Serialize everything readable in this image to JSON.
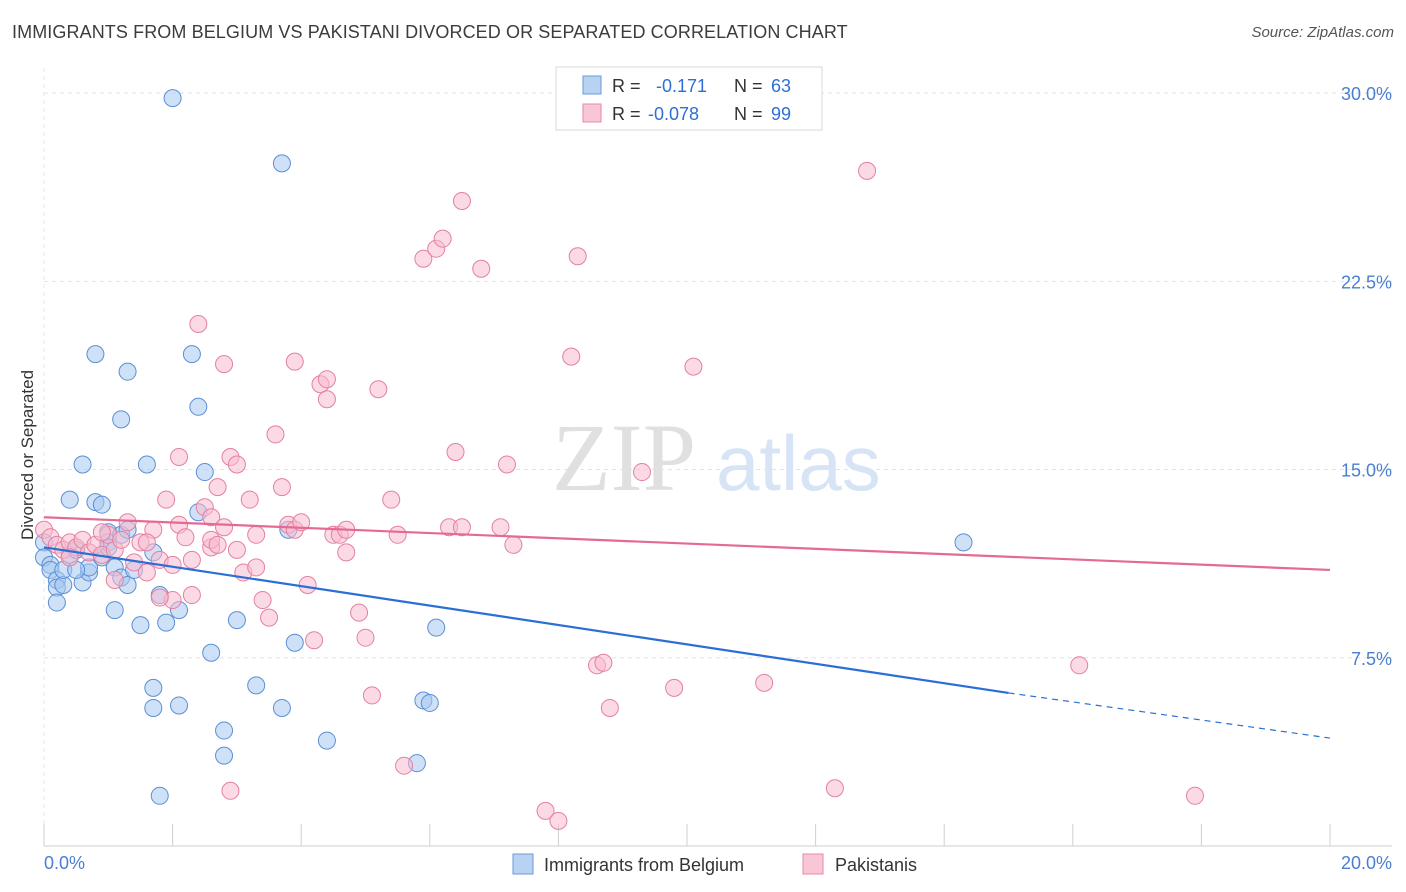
{
  "header": {
    "title": "IMMIGRANTS FROM BELGIUM VS PAKISTANI DIVORCED OR SEPARATED CORRELATION CHART",
    "source": "Source: ZipAtlas.com"
  },
  "watermark": {
    "part1": "ZIP",
    "part2": "atlas"
  },
  "legend_top": {
    "rows": [
      {
        "r_label": "R =",
        "r_value": "-0.171",
        "n_label": "N =",
        "n_value": "63"
      },
      {
        "r_label": "R =",
        "r_value": "-0.078",
        "n_label": "N =",
        "n_value": "99"
      }
    ]
  },
  "chart_data": {
    "type": "scatter",
    "title": "IMMIGRANTS FROM BELGIUM VS PAKISTANI DIVORCED OR SEPARATED CORRELATION CHART",
    "xlabel": "",
    "ylabel": "Divorced or Separated",
    "xlim": [
      0,
      20
    ],
    "ylim": [
      0,
      31
    ],
    "x_tick_labels": [
      "0.0%",
      "20.0%"
    ],
    "y_ticks": [
      7.5,
      15.0,
      22.5,
      30.0
    ],
    "y_tick_labels": [
      "7.5%",
      "15.0%",
      "22.5%",
      "30.0%"
    ],
    "grid": true,
    "legend_position": "bottom",
    "colors": {
      "belgium_fill": "#a8c8f0",
      "belgium_stroke": "#5b8fd6",
      "belgium_line": "#2a6fd6",
      "pakistani_fill": "#f8bcd0",
      "pakistani_stroke": "#e5809f",
      "pakistani_line": "#e46a94"
    },
    "series": [
      {
        "name": "Immigrants from Belgium",
        "trend": {
          "x0": 0,
          "y0": 11.9,
          "x1": 15.0,
          "y1": 6.1,
          "dash_to_x": 20,
          "dash_to_y": 4.3
        },
        "points": [
          [
            0.0,
            12.1
          ],
          [
            0.0,
            11.5
          ],
          [
            0.1,
            11.2
          ],
          [
            0.1,
            11.0
          ],
          [
            0.2,
            10.6
          ],
          [
            0.2,
            10.3
          ],
          [
            0.3,
            10.4
          ],
          [
            0.3,
            11.0
          ],
          [
            0.4,
            11.6
          ],
          [
            0.4,
            13.8
          ],
          [
            0.5,
            11.8
          ],
          [
            0.6,
            15.2
          ],
          [
            0.6,
            10.5
          ],
          [
            0.7,
            10.9
          ],
          [
            0.7,
            11.1
          ],
          [
            0.8,
            13.7
          ],
          [
            0.8,
            19.6
          ],
          [
            0.9,
            13.6
          ],
          [
            0.9,
            11.5
          ],
          [
            1.0,
            12.5
          ],
          [
            1.0,
            12.1
          ],
          [
            1.1,
            11.1
          ],
          [
            1.1,
            9.4
          ],
          [
            1.2,
            12.4
          ],
          [
            1.2,
            17.0
          ],
          [
            1.2,
            10.7
          ],
          [
            1.3,
            12.6
          ],
          [
            1.3,
            10.4
          ],
          [
            1.3,
            18.9
          ],
          [
            1.4,
            11.0
          ],
          [
            1.5,
            8.8
          ],
          [
            1.6,
            15.2
          ],
          [
            1.7,
            11.7
          ],
          [
            1.7,
            5.5
          ],
          [
            1.7,
            6.3
          ],
          [
            1.8,
            2.0
          ],
          [
            1.8,
            10.0
          ],
          [
            1.9,
            8.9
          ],
          [
            2.0,
            29.8
          ],
          [
            2.1,
            9.4
          ],
          [
            2.1,
            5.6
          ],
          [
            2.3,
            19.6
          ],
          [
            2.4,
            17.5
          ],
          [
            2.4,
            13.3
          ],
          [
            2.5,
            14.9
          ],
          [
            2.6,
            7.7
          ],
          [
            2.8,
            4.6
          ],
          [
            2.8,
            3.6
          ],
          [
            3.0,
            9.0
          ],
          [
            3.3,
            6.4
          ],
          [
            3.7,
            27.2
          ],
          [
            3.7,
            5.5
          ],
          [
            3.8,
            12.6
          ],
          [
            3.9,
            8.1
          ],
          [
            4.4,
            4.2
          ],
          [
            5.8,
            3.3
          ],
          [
            5.9,
            5.8
          ],
          [
            6.0,
            5.7
          ],
          [
            6.1,
            8.7
          ],
          [
            14.3,
            12.1
          ],
          [
            0.2,
            9.7
          ],
          [
            0.5,
            11.0
          ],
          [
            1.0,
            11.9
          ]
        ]
      },
      {
        "name": "Pakistanis",
        "trend": {
          "x0": 0,
          "y0": 13.1,
          "x1": 20,
          "y1": 11.0
        },
        "points": [
          [
            0.0,
            12.6
          ],
          [
            0.1,
            12.3
          ],
          [
            0.2,
            12.0
          ],
          [
            0.3,
            11.8
          ],
          [
            0.4,
            12.1
          ],
          [
            0.5,
            11.9
          ],
          [
            0.6,
            12.2
          ],
          [
            0.7,
            11.7
          ],
          [
            0.8,
            12.0
          ],
          [
            0.9,
            11.6
          ],
          [
            1.0,
            12.4
          ],
          [
            1.1,
            11.8
          ],
          [
            1.2,
            12.2
          ],
          [
            1.3,
            12.9
          ],
          [
            1.4,
            11.3
          ],
          [
            1.5,
            12.1
          ],
          [
            1.6,
            10.9
          ],
          [
            1.7,
            12.6
          ],
          [
            1.8,
            11.4
          ],
          [
            1.9,
            13.8
          ],
          [
            2.0,
            11.2
          ],
          [
            2.0,
            9.8
          ],
          [
            2.1,
            12.8
          ],
          [
            2.1,
            15.5
          ],
          [
            2.2,
            12.3
          ],
          [
            2.3,
            11.4
          ],
          [
            2.3,
            10.0
          ],
          [
            2.4,
            20.8
          ],
          [
            2.5,
            13.5
          ],
          [
            2.6,
            13.1
          ],
          [
            2.6,
            11.9
          ],
          [
            2.7,
            14.3
          ],
          [
            2.8,
            12.7
          ],
          [
            2.8,
            19.2
          ],
          [
            2.9,
            15.5
          ],
          [
            2.9,
            2.2
          ],
          [
            3.0,
            11.8
          ],
          [
            3.0,
            15.2
          ],
          [
            3.1,
            10.9
          ],
          [
            3.2,
            13.8
          ],
          [
            3.3,
            12.4
          ],
          [
            3.4,
            9.8
          ],
          [
            3.5,
            9.1
          ],
          [
            3.6,
            16.4
          ],
          [
            3.7,
            14.3
          ],
          [
            3.8,
            12.8
          ],
          [
            3.9,
            12.6
          ],
          [
            3.9,
            19.3
          ],
          [
            4.1,
            10.4
          ],
          [
            4.2,
            8.2
          ],
          [
            4.3,
            18.4
          ],
          [
            4.4,
            17.8
          ],
          [
            4.4,
            18.6
          ],
          [
            4.5,
            12.4
          ],
          [
            4.6,
            12.4
          ],
          [
            4.7,
            11.7
          ],
          [
            4.9,
            9.3
          ],
          [
            5.0,
            8.3
          ],
          [
            5.1,
            6.0
          ],
          [
            5.2,
            18.2
          ],
          [
            5.4,
            13.8
          ],
          [
            5.6,
            3.2
          ],
          [
            5.9,
            23.4
          ],
          [
            6.1,
            23.8
          ],
          [
            6.2,
            24.2
          ],
          [
            6.3,
            12.7
          ],
          [
            6.4,
            15.7
          ],
          [
            6.5,
            25.7
          ],
          [
            6.8,
            23.0
          ],
          [
            7.1,
            12.7
          ],
          [
            7.2,
            15.2
          ],
          [
            7.8,
            1.4
          ],
          [
            8.0,
            1.0
          ],
          [
            8.2,
            19.5
          ],
          [
            8.3,
            23.5
          ],
          [
            8.6,
            7.2
          ],
          [
            8.7,
            7.3
          ],
          [
            8.8,
            5.5
          ],
          [
            9.3,
            14.9
          ],
          [
            9.8,
            6.3
          ],
          [
            10.1,
            19.1
          ],
          [
            11.2,
            6.5
          ],
          [
            12.3,
            2.3
          ],
          [
            12.8,
            26.9
          ],
          [
            16.1,
            7.2
          ],
          [
            17.9,
            2.0
          ],
          [
            0.4,
            11.5
          ],
          [
            0.9,
            12.5
          ],
          [
            1.6,
            12.1
          ],
          [
            2.6,
            12.2
          ],
          [
            3.3,
            11.1
          ],
          [
            4.0,
            12.9
          ],
          [
            4.7,
            12.6
          ],
          [
            5.5,
            12.4
          ],
          [
            6.5,
            12.7
          ],
          [
            7.3,
            12.0
          ],
          [
            1.1,
            10.6
          ],
          [
            1.8,
            9.9
          ],
          [
            2.7,
            12.0
          ]
        ]
      }
    ]
  },
  "legend_bottom": {
    "items": [
      {
        "label": "Immigrants from Belgium"
      },
      {
        "label": "Pakistanis"
      }
    ]
  }
}
